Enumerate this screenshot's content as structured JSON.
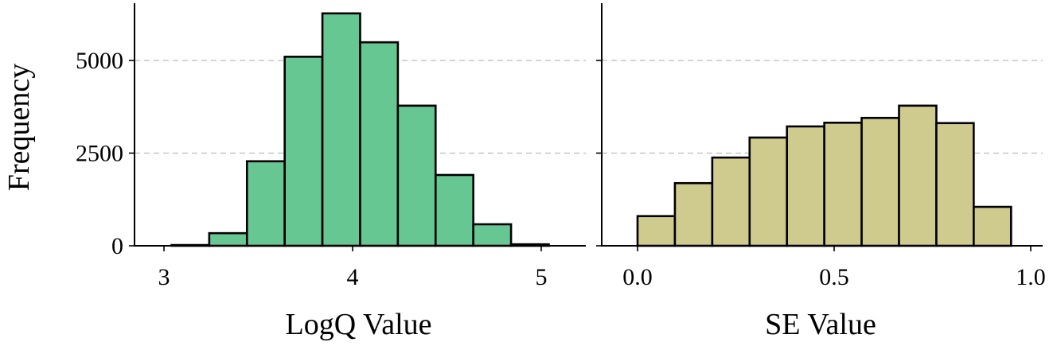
{
  "figure": {
    "ylabel": "Frequency",
    "colors": {
      "left_bars": "#66C792",
      "right_bars": "#CFCB8F",
      "edge": "#000000",
      "grid": "#BBBBBB"
    }
  },
  "chart_data": [
    {
      "type": "bar",
      "subtype": "histogram",
      "title": "",
      "xlabel": "LogQ Value",
      "ylabel": "Frequency",
      "xlim": [
        2.86,
        5.22
      ],
      "ylim": [
        0,
        6600
      ],
      "xticks": [
        3,
        4,
        5
      ],
      "xtick_labels": [
        "3",
        "4",
        "5"
      ],
      "yticks": [
        0,
        2500,
        5000
      ],
      "ytick_labels": [
        "0",
        "2500",
        "5000"
      ],
      "grid": "y-dashed",
      "bin_edges": [
        3.04,
        3.24,
        3.44,
        3.64,
        3.84,
        4.04,
        4.24,
        4.44,
        4.64,
        4.84,
        5.04
      ],
      "values": [
        20,
        340,
        2280,
        5100,
        6270,
        5490,
        3780,
        1910,
        580,
        40
      ],
      "color": "#66C792"
    },
    {
      "type": "bar",
      "subtype": "histogram",
      "title": "",
      "xlabel": "SE Value",
      "ylabel": "",
      "xlim": [
        -0.09,
        1.03
      ],
      "ylim": [
        0,
        6600
      ],
      "xticks": [
        0.0,
        0.5,
        1.0
      ],
      "xtick_labels": [
        "0.0",
        "0.5",
        "1.0"
      ],
      "yticks": [
        0,
        2500,
        5000
      ],
      "ytick_labels": [
        "",
        "",
        ""
      ],
      "grid": "y-dashed",
      "bin_edges": [
        0.0,
        0.095,
        0.19,
        0.285,
        0.38,
        0.475,
        0.57,
        0.665,
        0.76,
        0.855,
        0.95
      ],
      "values": [
        800,
        1690,
        2380,
        2920,
        3220,
        3320,
        3450,
        3780,
        3310,
        1050
      ],
      "color": "#CFCB8F"
    }
  ]
}
